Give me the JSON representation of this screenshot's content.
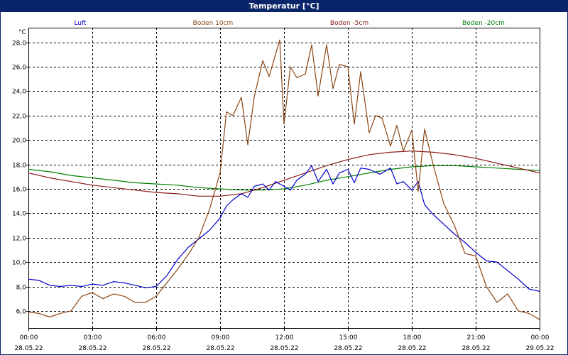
{
  "window": {
    "title": "Temperatur [°C]"
  },
  "chart_data": {
    "type": "line",
    "ylabel": "°C",
    "ylim": [
      4.6,
      29.2
    ],
    "y_ticks": [
      6.0,
      8.0,
      10.0,
      12.0,
      14.0,
      16.0,
      18.0,
      20.0,
      22.0,
      24.0,
      26.0,
      28.0
    ],
    "y_tick_labels": [
      "6,0",
      "8,0",
      "10,0",
      "12,0",
      "14,0",
      "16,0",
      "18,0",
      "20,0",
      "22,0",
      "24,0",
      "26,0",
      "28,0"
    ],
    "xlim": [
      0,
      24
    ],
    "x_ticks": [
      0,
      3,
      6,
      9,
      12,
      15,
      18,
      21,
      24
    ],
    "x_tick_labels": [
      [
        "00:00",
        "28.05.22"
      ],
      [
        "03:00",
        "28.05.22"
      ],
      [
        "06:00",
        "28.05.22"
      ],
      [
        "09:00",
        "28.05.22"
      ],
      [
        "12:00",
        "28.05.22"
      ],
      [
        "15:00",
        "28.05.22"
      ],
      [
        "18:00",
        "28.05.22"
      ],
      [
        "21:00",
        "28.05.22"
      ],
      [
        "00:00",
        "29.05.22"
      ]
    ],
    "grid": true,
    "legend_position": "top",
    "series": [
      {
        "name": "Luft",
        "color": "#0000cc",
        "x": [
          0,
          0.5,
          1,
          1.5,
          2,
          2.5,
          3,
          3.5,
          4,
          4.5,
          5,
          5.5,
          6,
          6.5,
          7,
          7.5,
          8,
          8.5,
          9,
          9.3,
          9.6,
          10,
          10.3,
          10.6,
          11,
          11.3,
          11.6,
          12,
          12.3,
          12.6,
          13,
          13.3,
          13.6,
          14,
          14.3,
          14.6,
          15,
          15.3,
          15.6,
          16,
          16.5,
          17,
          17.3,
          17.6,
          18,
          18.3,
          18.6,
          19,
          19.5,
          20,
          20.5,
          21,
          21.5,
          22,
          22.5,
          23,
          23.5,
          24
        ],
        "y": [
          8.6,
          8.5,
          8.1,
          8.0,
          8.1,
          8.0,
          8.2,
          8.1,
          8.4,
          8.3,
          8.1,
          7.9,
          8.0,
          8.9,
          10.2,
          11.2,
          11.9,
          12.6,
          13.6,
          14.6,
          15.1,
          15.6,
          15.3,
          16.2,
          16.4,
          15.9,
          16.6,
          16.2,
          15.9,
          16.7,
          17.2,
          17.9,
          16.6,
          17.6,
          16.4,
          17.3,
          17.6,
          16.5,
          17.7,
          17.6,
          17.2,
          17.7,
          16.4,
          16.6,
          15.9,
          16.6,
          14.7,
          13.9,
          13.1,
          12.3,
          11.6,
          10.8,
          10.1,
          10.0,
          9.3,
          8.6,
          7.8,
          7.6
        ]
      },
      {
        "name": "Boden 10cm",
        "color": "#8b4513",
        "x": [
          0,
          0.5,
          1,
          1.5,
          2,
          2.5,
          3,
          3.5,
          4,
          4.5,
          5,
          5.5,
          6,
          6.5,
          7,
          7.5,
          8,
          8.5,
          9,
          9.3,
          9.6,
          10,
          10.3,
          10.6,
          11,
          11.3,
          11.6,
          11.8,
          12,
          12.3,
          12.6,
          13,
          13.3,
          13.6,
          14,
          14.3,
          14.6,
          15,
          15.3,
          15.6,
          16,
          16.3,
          16.6,
          17,
          17.3,
          17.6,
          18,
          18.3,
          18.6,
          19,
          19.5,
          20,
          20.5,
          21,
          21.5,
          22,
          22.5,
          23,
          23.5,
          24
        ],
        "y": [
          5.9,
          5.8,
          5.5,
          5.8,
          6.0,
          7.2,
          7.5,
          7.0,
          7.4,
          7.2,
          6.7,
          6.7,
          7.2,
          8.3,
          9.4,
          10.6,
          12.0,
          14.3,
          17.3,
          22.3,
          22.0,
          23.5,
          19.6,
          23.5,
          26.5,
          25.2,
          27.0,
          28.2,
          21.3,
          26.0,
          25.1,
          25.4,
          27.8,
          23.6,
          27.8,
          24.2,
          26.2,
          26.0,
          21.3,
          25.6,
          20.6,
          22.0,
          21.8,
          19.5,
          21.2,
          19.1,
          20.8,
          15.8,
          20.9,
          18.0,
          14.8,
          13.0,
          10.7,
          10.5,
          8.0,
          6.7,
          7.4,
          6.0,
          5.8,
          5.3
        ]
      },
      {
        "name": "Boden -5cm",
        "color": "#8b1a1a",
        "x": [
          0,
          1,
          2,
          3,
          4,
          5,
          6,
          7,
          8,
          9,
          10,
          11,
          12,
          13,
          14,
          15,
          16,
          17,
          18,
          19,
          20,
          21,
          22,
          23,
          24
        ],
        "y": [
          17.3,
          16.9,
          16.6,
          16.3,
          16.1,
          15.9,
          15.7,
          15.6,
          15.4,
          15.4,
          15.6,
          16.1,
          16.7,
          17.3,
          17.9,
          18.4,
          18.8,
          19.0,
          19.1,
          19.0,
          18.8,
          18.5,
          18.1,
          17.7,
          17.3
        ]
      },
      {
        "name": "Boden -20cm",
        "color": "#008000",
        "x": [
          0,
          1,
          2,
          3,
          4,
          5,
          6,
          7,
          8,
          9,
          10,
          11,
          12,
          13,
          14,
          15,
          16,
          17,
          18,
          19,
          20,
          21,
          22,
          23,
          24
        ],
        "y": [
          17.6,
          17.4,
          17.1,
          16.9,
          16.7,
          16.5,
          16.4,
          16.3,
          16.1,
          16.0,
          15.9,
          15.9,
          16.0,
          16.3,
          16.7,
          17.0,
          17.3,
          17.6,
          17.8,
          17.9,
          17.9,
          17.8,
          17.7,
          17.6,
          17.5
        ]
      }
    ]
  }
}
